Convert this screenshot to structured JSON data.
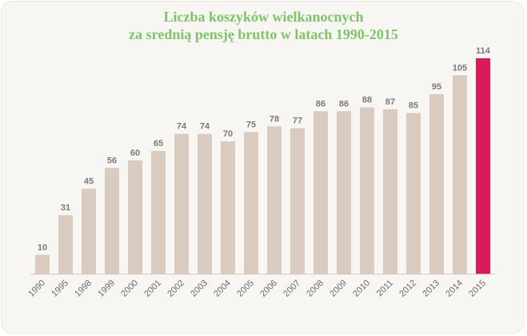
{
  "chart_data": {
    "type": "bar",
    "title": [
      "Liczba koszyków wielkanocnych",
      "za srednią pensję brutto w latach 1990-2015"
    ],
    "categories": [
      "1990",
      "1995",
      "1998",
      "1999",
      "2000",
      "2001",
      "2002",
      "2003",
      "2004",
      "2005",
      "2006",
      "2007",
      "2008",
      "2009",
      "2010",
      "2011",
      "2012",
      "2013",
      "2014",
      "2015"
    ],
    "values": [
      10,
      31,
      45,
      56,
      60,
      65,
      74,
      74,
      70,
      75,
      78,
      77,
      86,
      86,
      88,
      87,
      85,
      95,
      105,
      114
    ],
    "ylim": [
      0,
      114
    ],
    "grid": false,
    "colors": {
      "bar": "#d9cbbf",
      "highlight": "#d81b5a",
      "label": "#7a7a7a",
      "axis": "#6b6b6b"
    },
    "highlight_index": 19
  }
}
